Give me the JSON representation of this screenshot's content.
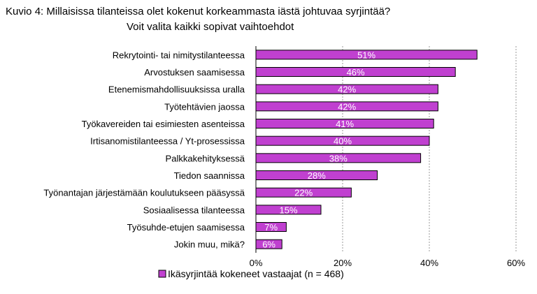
{
  "title": {
    "line1": "Kuvio 4: Millaisissa tilanteissa olet kokenut korkeammasta iästä johtuvaa syrjintää?",
    "line2": "Voit valita kaikki sopivat vaihtoehdot"
  },
  "chart_data": {
    "type": "bar",
    "orientation": "horizontal",
    "categories": [
      "Rekrytointi- tai nimitystilanteessa",
      "Arvostuksen saamisessa",
      "Etenemismahdollisuuksissa uralla",
      "Työtehtävien jaossa",
      "Työkavereiden tai esimiesten asenteissa",
      "Irtisanomistilanteessa / Yt-prosessissa",
      "Palkkakehityksessä",
      "Tiedon saannissa",
      "Työnantajan järjestämään koulutukseen pääsyssä",
      "Sosiaalisessa tilanteessa",
      "Työsuhde-etujen saamisessa",
      "Jokin muu, mikä?"
    ],
    "series": [
      {
        "name": "Ikäsyrjintää kokeneet vastaajat (n = 468)",
        "values": [
          51,
          46,
          42,
          42,
          41,
          40,
          38,
          28,
          22,
          15,
          7,
          6
        ],
        "labels": [
          "51%",
          "46%",
          "42%",
          "42%",
          "41%",
          "40%",
          "38%",
          "28%",
          "22%",
          "15%",
          "7%",
          "6%"
        ],
        "color": "#c040d0"
      }
    ],
    "xlim": [
      0,
      60
    ],
    "xticks": [
      0,
      20,
      40,
      60
    ],
    "xtick_labels": [
      "0%",
      "20%",
      "40%",
      "60%"
    ],
    "grid": true,
    "legend_position": "bottom"
  }
}
